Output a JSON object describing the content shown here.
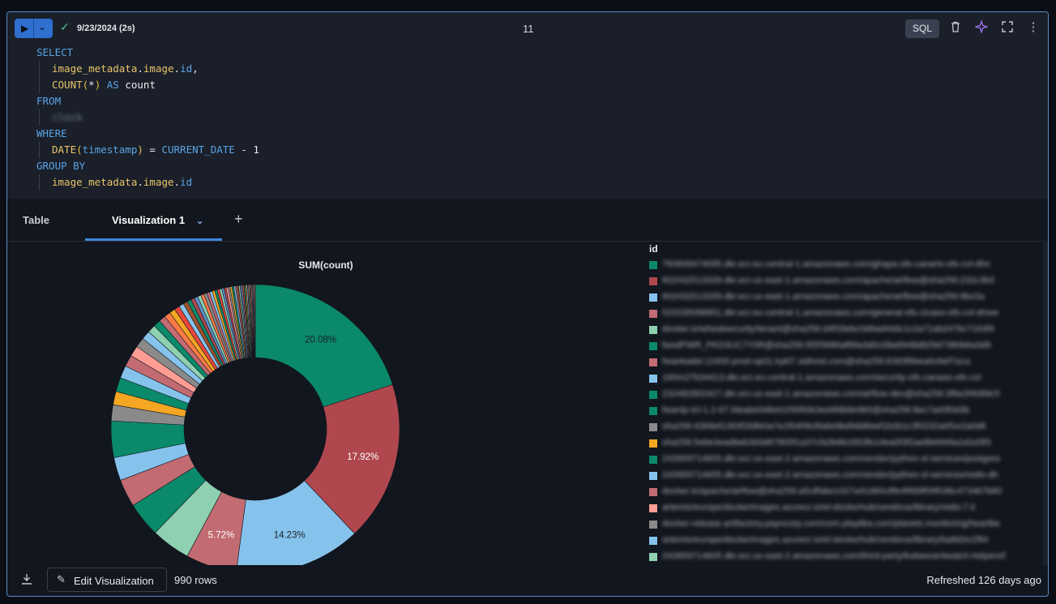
{
  "toolbar": {
    "run_icon": "play-icon",
    "status_icon": "check-icon",
    "runtime_label": "9/23/2024 (2s)",
    "cell_number": "11",
    "language_badge": "SQL",
    "icons": [
      "trash-icon",
      "sparkle-icon",
      "fullscreen-icon",
      "more-vertical-icon"
    ]
  },
  "query_lines": [
    {
      "indent": 0,
      "parts": [
        {
          "t": "SELECT",
          "c": "kw"
        }
      ]
    },
    {
      "indent": 1,
      "parts": [
        {
          "t": "image_metadata",
          "c": "id"
        },
        {
          "t": ".",
          "c": "pl"
        },
        {
          "t": "image",
          "c": "id"
        },
        {
          "t": ".",
          "c": "pl"
        },
        {
          "t": "id",
          "c": "kw"
        },
        {
          "t": ",",
          "c": "pl"
        }
      ]
    },
    {
      "indent": 1,
      "parts": [
        {
          "t": "COUNT",
          "c": "id"
        },
        {
          "t": "(",
          "c": "paren"
        },
        {
          "t": "*",
          "c": "pl"
        },
        {
          "t": ")",
          "c": "paren"
        },
        {
          "t": " AS ",
          "c": "kw"
        },
        {
          "t": "count",
          "c": "pl"
        }
      ]
    },
    {
      "indent": 0,
      "parts": [
        {
          "t": "FROM",
          "c": "kw"
        }
      ]
    },
    {
      "indent": 1,
      "parts": [
        {
          "t": "clock",
          "c": "blur"
        }
      ]
    },
    {
      "indent": 0,
      "parts": [
        {
          "t": "WHERE",
          "c": "kw"
        }
      ]
    },
    {
      "indent": 1,
      "parts": [
        {
          "t": "DATE",
          "c": "id"
        },
        {
          "t": "(",
          "c": "paren"
        },
        {
          "t": "timestamp",
          "c": "kw"
        },
        {
          "t": ")",
          "c": "paren"
        },
        {
          "t": " = ",
          "c": "pl"
        },
        {
          "t": "CURRENT_DATE",
          "c": "kw"
        },
        {
          "t": " - 1",
          "c": "pl"
        }
      ]
    },
    {
      "indent": 0,
      "parts": [
        {
          "t": "GROUP BY",
          "c": "kw"
        }
      ]
    },
    {
      "indent": 1,
      "parts": [
        {
          "t": "image_metadata",
          "c": "id"
        },
        {
          "t": ".",
          "c": "pl"
        },
        {
          "t": "image",
          "c": "id"
        },
        {
          "t": ".",
          "c": "pl"
        },
        {
          "t": "id",
          "c": "kw"
        }
      ]
    }
  ],
  "tabs": {
    "table": "Table",
    "visualization": "Visualization 1",
    "add": "+"
  },
  "chart_data": {
    "type": "pie",
    "title": "SUM(count)",
    "donut": true,
    "legend_title": "id",
    "legend_position": "right",
    "slices": [
      {
        "value": 20.08,
        "color": "#0a8a6a",
        "label": "20.08%"
      },
      {
        "value": 17.92,
        "color": "#b0474f",
        "label": "17.92%"
      },
      {
        "value": 14.23,
        "color": "#86c3ec",
        "label": "14.23%"
      },
      {
        "value": 5.72,
        "color": "#c26b72",
        "label": "5.72%"
      },
      {
        "value": 4.4,
        "color": "#8ed0b0",
        "label": ""
      },
      {
        "value": 3.9,
        "color": "#0a8a6a",
        "label": ""
      },
      {
        "value": 3.1,
        "color": "#c26b72",
        "label": ""
      },
      {
        "value": 2.6,
        "color": "#86c3ec",
        "label": ""
      },
      {
        "value": 4.1,
        "color": "#0a8a6a",
        "label": ""
      },
      {
        "value": 1.8,
        "color": "#8a8a8a",
        "label": ""
      },
      {
        "value": 1.5,
        "color": "#f5a623",
        "label": ""
      },
      {
        "value": 1.6,
        "color": "#0a8a6a",
        "label": ""
      },
      {
        "value": 1.4,
        "color": "#86c3ec",
        "label": ""
      },
      {
        "value": 1.3,
        "color": "#c26b72",
        "label": ""
      },
      {
        "value": 1.2,
        "color": "#ff9c93",
        "label": ""
      },
      {
        "value": 1.1,
        "color": "#8a8a8a",
        "label": ""
      },
      {
        "value": 1.0,
        "color": "#86c3ec",
        "label": ""
      },
      {
        "value": 0.9,
        "color": "#8ed0b0",
        "label": ""
      },
      {
        "value": 0.8,
        "color": "#0a8a6a",
        "label": ""
      },
      {
        "value": 0.75,
        "color": "#c26b72",
        "label": ""
      },
      {
        "value": 0.7,
        "color": "#ff7a45",
        "label": ""
      },
      {
        "value": 0.65,
        "color": "#f5a623",
        "label": ""
      },
      {
        "value": 0.6,
        "color": "#e8463b",
        "label": ""
      },
      {
        "value": 0.55,
        "color": "#86c3ec",
        "label": ""
      },
      {
        "value": 0.5,
        "color": "#a0522d",
        "label": ""
      },
      {
        "value": 0.45,
        "color": "#0a8a6a",
        "label": ""
      },
      {
        "value": 0.42,
        "color": "#b0474f",
        "label": ""
      },
      {
        "value": 0.4,
        "color": "#5b8fc9",
        "label": ""
      },
      {
        "value": 0.38,
        "color": "#8ed0b0",
        "label": ""
      },
      {
        "value": 0.36,
        "color": "#ff7a45",
        "label": ""
      },
      {
        "value": 0.34,
        "color": "#8a8a8a",
        "label": ""
      },
      {
        "value": 0.32,
        "color": "#c26b72",
        "label": ""
      },
      {
        "value": 0.3,
        "color": "#86c3ec",
        "label": ""
      },
      {
        "value": 0.29,
        "color": "#f5a623",
        "label": ""
      },
      {
        "value": 0.28,
        "color": "#0a8a6a",
        "label": ""
      },
      {
        "value": 0.27,
        "color": "#e8463b",
        "label": ""
      },
      {
        "value": 0.26,
        "color": "#8ed0b0",
        "label": ""
      },
      {
        "value": 0.25,
        "color": "#5b8fc9",
        "label": ""
      },
      {
        "value": 0.24,
        "color": "#b0474f",
        "label": ""
      },
      {
        "value": 0.23,
        "color": "#ff9c93",
        "label": ""
      },
      {
        "value": 0.22,
        "color": "#8a8a8a",
        "label": ""
      },
      {
        "value": 0.21,
        "color": "#f5a623",
        "label": ""
      },
      {
        "value": 0.2,
        "color": "#0a8a6a",
        "label": ""
      },
      {
        "value": 0.19,
        "color": "#86c3ec",
        "label": ""
      },
      {
        "value": 0.18,
        "color": "#c26b72",
        "label": ""
      },
      {
        "value": 0.17,
        "color": "#a0522d",
        "label": ""
      },
      {
        "value": 0.16,
        "color": "#8ed0b0",
        "label": ""
      },
      {
        "value": 0.15,
        "color": "#5b8fc9",
        "label": ""
      },
      {
        "value": 0.15,
        "color": "#8a8a8a",
        "label": ""
      },
      {
        "value": 0.14,
        "color": "#e8463b",
        "label": ""
      },
      {
        "value": 0.14,
        "color": "#0a8a6a",
        "label": ""
      },
      {
        "value": 0.13,
        "color": "#f5a623",
        "label": ""
      },
      {
        "value": 0.13,
        "color": "#86c3ec",
        "label": ""
      },
      {
        "value": 0.12,
        "color": "#b0474f",
        "label": ""
      },
      {
        "value": 0.12,
        "color": "#8ed0b0",
        "label": ""
      },
      {
        "value": 0.11,
        "color": "#a0522d",
        "label": ""
      },
      {
        "value": 0.11,
        "color": "#ff9c93",
        "label": ""
      },
      {
        "value": 0.1,
        "color": "#8a8a8a",
        "label": ""
      },
      {
        "value": 0.1,
        "color": "#5b8fc9",
        "label": ""
      },
      {
        "value": 0.1,
        "color": "#ff7a45",
        "label": ""
      },
      {
        "value": 0.1,
        "color": "#c26b72",
        "label": ""
      }
    ],
    "legend_items": [
      {
        "color": "#0a8a6a",
        "text": "760849474095.dkr.ecr.eu-central-1.amazonaws.com/ghapa-ofs-canaris-ofs-cvl-dhn"
      },
      {
        "color": "#b0474f",
        "text": "602432513339.dkr.ecr.us-east-1.amazonaws.com/apache/airflow@sha256:232c3b3"
      },
      {
        "color": "#86c3ec",
        "text": "602432513339.dkr.ecr.us-east-1.amazonaws.com/apache/airflow@sha256:9bc0a"
      },
      {
        "color": "#c26b72",
        "text": "522035096651.dkr.ecr.eu-central-1.amazonaws.com/general-ofs-cicaso-ofs-cvl-driver"
      },
      {
        "color": "#8ed0b0",
        "text": "docker.io/wheatsecurity/tenant@sha256:d4f33ebc0d9ad44dc1c2a71ab247bc7163f4"
      },
      {
        "color": "#0a8a6a",
        "text": "fwsdPWR_PKD3UC7Y0R@sha256:5f2f3686af89a3d0c08a9948d829d7380b6a3d9"
      },
      {
        "color": "#c26b72",
        "text": "fwankadel:12400.prod-np01.kykl7.sidhost.com@sha256:6393f6bea0c6ef7a1a"
      },
      {
        "color": "#86c3ec",
        "text": "160m27b34413.dkr.ecr.eu-central-1.amazonaws.com/security-ofs-canaso-ofs-cvl"
      },
      {
        "color": "#0a8a6a",
        "text": "232482802427.dkr.ecr.us-east-1.amazonaws.com/airflow-dev@sha256:3f6e2f4089c5"
      },
      {
        "color": "#0a8a6a",
        "text": "fwantp-tcl-1.2-67.fdeabe0d6e01f4950b3ed4fdb8e9b5@sha256:8ec7ad3f0d3b"
      },
      {
        "color": "#8a8a8a",
        "text": "sha256:4369ef1393f1fdfe0a7e1f04f4b3fa6e9bd9dd8eef1b2b1c3f0232a0f1e2a0d6"
      },
      {
        "color": "#f5a623",
        "text": "sha256:5ebe3eadbeb3d3d67805f1a37cfa3b6b1653fe14ea0f3f2ae8b6949a1d1d3f3"
      },
      {
        "color": "#0a8a6a",
        "text": "243959714605.dkr.ecr.us-east-2.amazonaws.com/vendor/python-sl-services/postgres"
      },
      {
        "color": "#86c3ec",
        "text": "243959714605.dkr.ecr.us-east-2.amazonaws.com/vendor/python-sl-services/redis-dh"
      },
      {
        "color": "#c26b72",
        "text": "docker.io/apache/airflow@sha256:a5c8fabcc027a41d60c8fe4f689f59f036c4734b7b80"
      },
      {
        "color": "#ff9c93",
        "text": "artemis/europe/dockerimages.azurecr.io/el-dockerhub/cerebrus/library/redis:7.0"
      },
      {
        "color": "#8a8a8a",
        "text": "docker-release.artifactory.payncorp.com/com.playtika.com/planets.monitoring/heartbe"
      },
      {
        "color": "#86c3ec",
        "text": "artemis/europe/dockerimages.azurecr.io/el-dockerhub/cerebrus/library/ba8d2e1f84"
      },
      {
        "color": "#8ed0b0",
        "text": "243959714605.dkr.ecr.us-east-2.amazonaws.com/third-party/kubeeventwatch-helpers/l"
      }
    ]
  },
  "footer": {
    "download_icon": "download-icon",
    "edit_icon": "pencil-icon",
    "edit_label": "Edit Visualization",
    "rows": "990 rows",
    "refreshed": "Refreshed 126 days ago"
  }
}
